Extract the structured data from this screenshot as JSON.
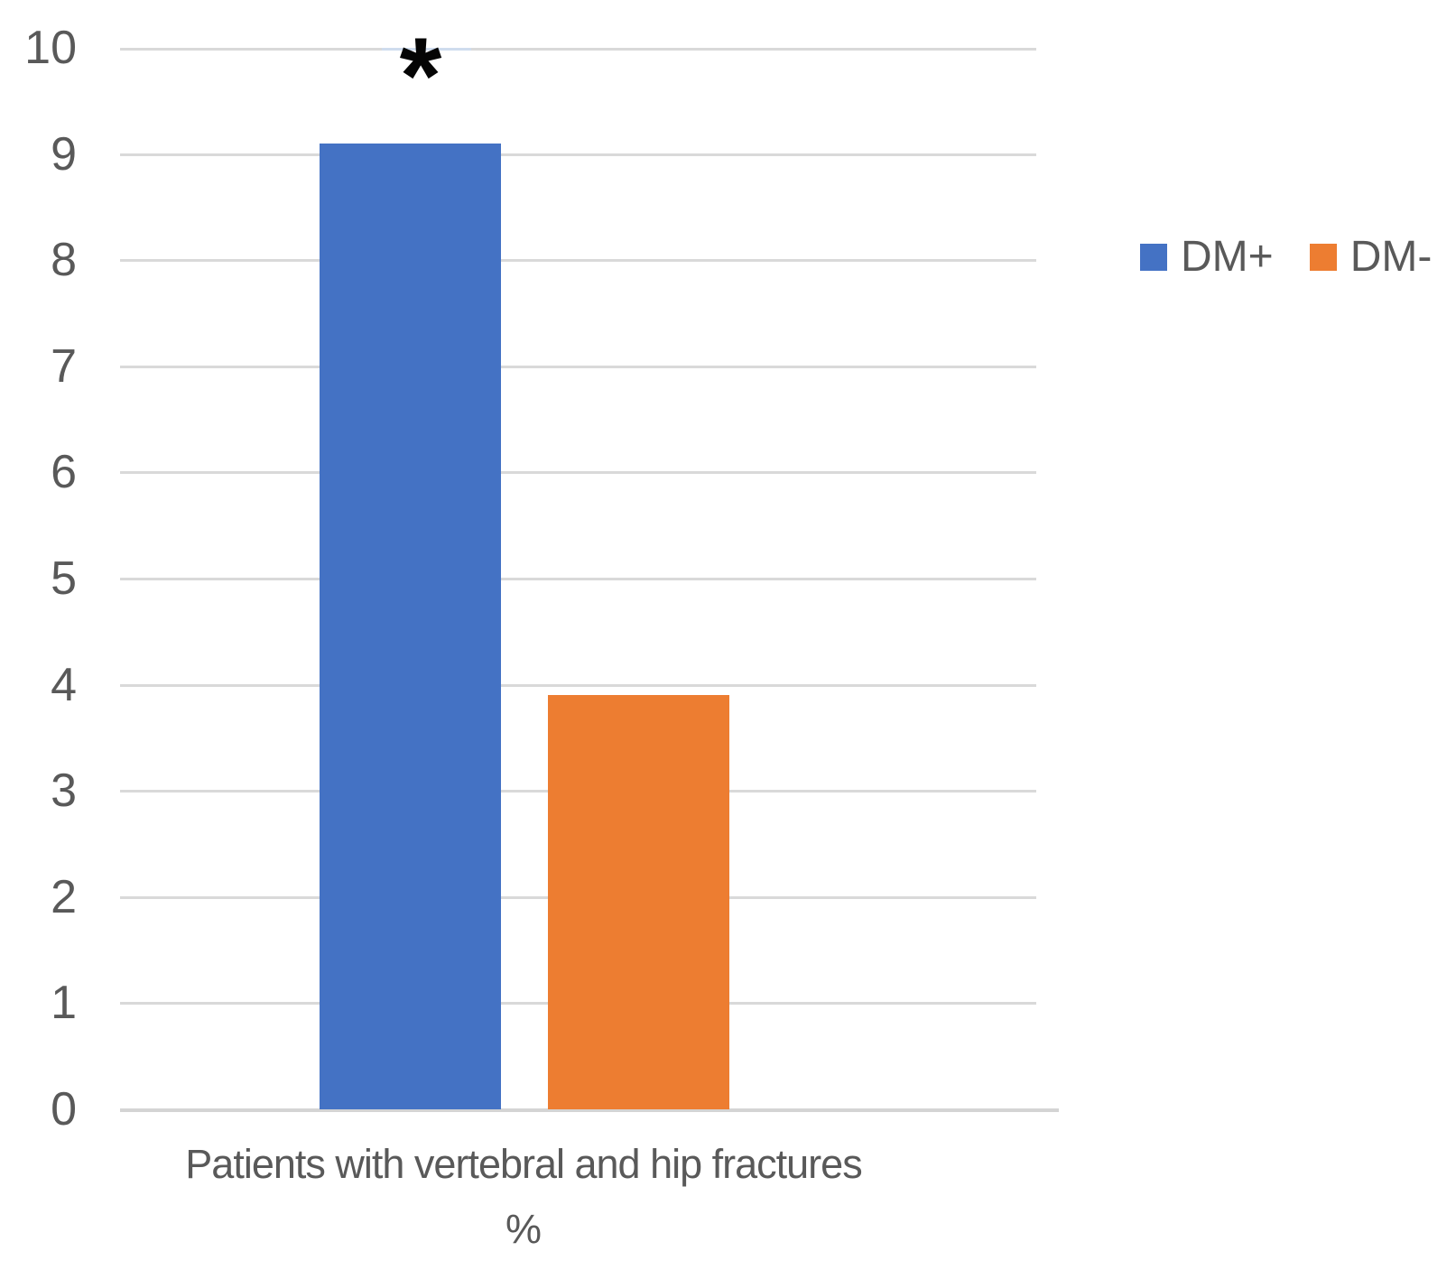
{
  "xaxis": {
    "label_line1": "Patients with vertebral and hip fractures",
    "label_line2": "%"
  },
  "legend": {
    "items": [
      {
        "label": "DM+",
        "color": "#4472C4"
      },
      {
        "label": "DM-",
        "color": "#ED7D31"
      }
    ]
  },
  "colors": {
    "dm_plus": "#4472C4",
    "dm_minus": "#ED7D31",
    "gridline": "#d9d9d9",
    "text_gray": "#595959"
  },
  "chart_data": {
    "type": "bar",
    "categories": [
      "Patients with vertebral and hip fractures %"
    ],
    "series": [
      {
        "name": "DM+",
        "values": [
          9.1
        ],
        "color": "#4472C4"
      },
      {
        "name": "DM-",
        "values": [
          3.9
        ],
        "color": "#ED7D31"
      }
    ],
    "title": "",
    "xlabel": "Patients with vertebral and hip fractures %",
    "ylabel": "",
    "ylim": [
      0,
      10
    ],
    "yticks": [
      0,
      1,
      2,
      3,
      4,
      5,
      6,
      7,
      8,
      9,
      10
    ],
    "grid": true,
    "legend_position": "right",
    "annotations": [
      {
        "text": "*",
        "target": "DM+ bar",
        "position": "above"
      }
    ]
  }
}
